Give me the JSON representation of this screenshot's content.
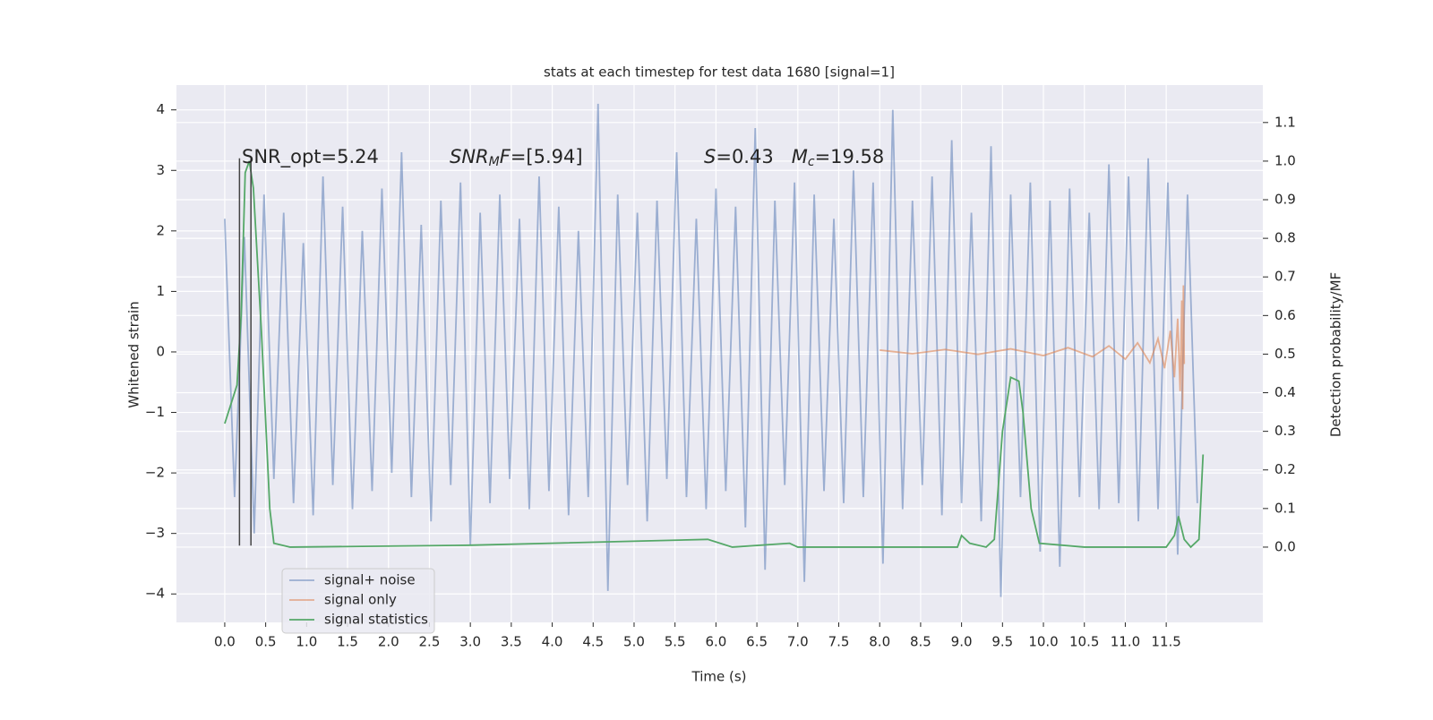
{
  "chart_data": {
    "type": "line",
    "title": "stats at each timestep for test data 1680 [signal=1]",
    "xlabel": "Time (s)",
    "ylabel": "Whitened strain",
    "y2label": "Detection probability/MF",
    "xlim": [
      -0.59,
      12.68
    ],
    "ylim": [
      -4.47,
      4.41
    ],
    "y2lim": [
      -0.195,
      1.197
    ],
    "xticks": [
      {
        "value": 0,
        "label": "0.0"
      },
      0.5,
      {
        "value": 1,
        "label": "1.0"
      },
      1.5,
      {
        "value": 2,
        "label": "2.0"
      },
      2.5,
      {
        "value": 3,
        "label": "3.0"
      },
      3.5,
      {
        "value": 4,
        "label": "4.0"
      },
      4.5,
      {
        "value": 5,
        "label": "5.0"
      },
      5.5,
      {
        "value": 6,
        "label": "6.0"
      },
      6.5,
      {
        "value": 7,
        "label": "7.0"
      },
      7.5,
      {
        "value": 8,
        "label": "8.0"
      },
      8.5,
      {
        "value": 9,
        "label": "9.0"
      },
      9.5,
      {
        "value": 10,
        "label": "10.0"
      },
      10.5,
      {
        "value": 11,
        "label": "11.0"
      },
      11.5
    ],
    "yticks": [
      {
        "value": -4,
        "label": "−4"
      },
      {
        "value": -3,
        "label": "−3"
      },
      {
        "value": -2,
        "label": "−2"
      },
      {
        "value": -1,
        "label": "−1"
      },
      0,
      1,
      2,
      3,
      4
    ],
    "y2ticks": [
      {
        "value": 0,
        "label": "0.0"
      },
      0.1,
      0.2,
      0.3,
      0.4,
      0.5,
      0.6,
      0.7,
      0.8,
      0.9,
      {
        "value": 1,
        "label": "1.0"
      },
      1.1
    ],
    "grid": true,
    "legend": "lower left",
    "series": [
      {
        "name": "signal+ noise",
        "color": "#4c72b0",
        "opacity": 0.5,
        "x": [
          0,
          0.12,
          0.24,
          0.36,
          0.48,
          0.6,
          0.72,
          0.84,
          0.96,
          1.08,
          1.2,
          1.32,
          1.44,
          1.56,
          1.68,
          1.8,
          1.92,
          2.04,
          2.16,
          2.28,
          2.4,
          2.52,
          2.64,
          2.76,
          2.88,
          3,
          3.12,
          3.24,
          3.36,
          3.48,
          3.6,
          3.72,
          3.84,
          3.96,
          4.08,
          4.2,
          4.32,
          4.44,
          4.56,
          4.68,
          4.8,
          4.92,
          5.04,
          5.16,
          5.28,
          5.4,
          5.52,
          5.64,
          5.76,
          5.88,
          6,
          6.12,
          6.24,
          6.36,
          6.48,
          6.6,
          6.72,
          6.84,
          6.96,
          7.08,
          7.2,
          7.32,
          7.44,
          7.56,
          7.68,
          7.8,
          7.92,
          8.04,
          8.16,
          8.28,
          8.4,
          8.52,
          8.64,
          8.76,
          8.88,
          9,
          9.12,
          9.24,
          9.36,
          9.48,
          9.6,
          9.72,
          9.84,
          9.96,
          10.08,
          10.2,
          10.32,
          10.44,
          10.56,
          10.68,
          10.8,
          10.92,
          11.04,
          11.16,
          11.28,
          11.4,
          11.52,
          11.64,
          11.76,
          11.88
        ],
        "values": [
          2.2,
          -2.4,
          1.9,
          -3.0,
          2.6,
          -2.1,
          2.3,
          -2.5,
          1.8,
          -2.7,
          2.9,
          -2.2,
          2.4,
          -2.6,
          2.0,
          -2.3,
          2.7,
          -2.0,
          3.3,
          -2.4,
          2.1,
          -2.8,
          2.5,
          -2.2,
          2.8,
          -3.2,
          2.3,
          -2.5,
          2.6,
          -2.1,
          2.2,
          -2.6,
          2.9,
          -2.3,
          2.4,
          -2.7,
          2.0,
          -2.4,
          4.1,
          -3.95,
          2.6,
          -2.2,
          2.3,
          -2.8,
          2.5,
          -2.1,
          3.3,
          -2.4,
          2.2,
          -2.6,
          2.7,
          -2.3,
          2.4,
          -2.9,
          3.7,
          -3.6,
          2.5,
          -2.2,
          2.8,
          -3.8,
          2.6,
          -2.3,
          2.2,
          -2.5,
          3.0,
          -2.4,
          2.8,
          -3.5,
          4.0,
          -2.6,
          2.5,
          -2.2,
          2.9,
          -2.7,
          3.5,
          -2.5,
          2.3,
          -2.8,
          3.4,
          -4.05,
          2.6,
          -2.4,
          2.8,
          -3.3,
          2.5,
          -3.55,
          2.7,
          -2.4,
          2.3,
          -2.6,
          3.1,
          -2.5,
          2.9,
          -2.8,
          3.2,
          -2.6,
          2.8,
          -3.35,
          2.6,
          -2.5
        ]
      },
      {
        "name": "signal only",
        "color": "#dd8452",
        "opacity": 0.6,
        "x": [
          8.0,
          8.4,
          8.8,
          9.2,
          9.6,
          10.0,
          10.3,
          10.6,
          10.8,
          11.0,
          11.15,
          11.3,
          11.4,
          11.48,
          11.55,
          11.6,
          11.64,
          11.67,
          11.69,
          11.7,
          11.71,
          11.72
        ],
        "values": [
          0.03,
          -0.03,
          0.04,
          -0.04,
          0.05,
          -0.06,
          0.07,
          -0.08,
          0.1,
          -0.12,
          0.15,
          -0.18,
          0.22,
          -0.27,
          0.35,
          -0.42,
          0.55,
          -0.65,
          0.85,
          -0.95,
          1.1,
          -0.2
        ]
      },
      {
        "name": "signal statistics",
        "color": "#55a868",
        "opacity": 1,
        "axis": "y2",
        "x": [
          0.0,
          0.15,
          0.2,
          0.25,
          0.3,
          0.35,
          0.45,
          0.55,
          0.6,
          0.8,
          3.0,
          5.9,
          6.2,
          6.9,
          7.0,
          8.95,
          9.0,
          9.1,
          9.3,
          9.4,
          9.5,
          9.6,
          9.7,
          9.75,
          9.85,
          9.95,
          10.5,
          11.5,
          11.6,
          11.65,
          11.72,
          11.8,
          11.9,
          11.95
        ],
        "values": [
          0.32,
          0.42,
          0.6,
          0.97,
          1.0,
          0.93,
          0.55,
          0.1,
          0.01,
          0.0,
          0.005,
          0.02,
          0.0,
          0.01,
          0.0,
          0.0,
          0.03,
          0.01,
          0.0,
          0.02,
          0.3,
          0.44,
          0.43,
          0.35,
          0.1,
          0.01,
          0.0,
          0.0,
          0.03,
          0.08,
          0.02,
          0.0,
          0.02,
          0.24
        ]
      }
    ],
    "vlines": [
      {
        "x": 0.18,
        "y": [
          -3.2,
          3.2
        ]
      },
      {
        "x": 0.32,
        "y": [
          -3.2,
          3.2
        ]
      }
    ],
    "annotations": [
      {
        "parts": [
          "SNR_opt=5.24"
        ]
      },
      {
        "parts": [
          "SNR",
          "M",
          "F",
          "=[5.94]"
        ]
      },
      {
        "parts": [
          "S",
          "=0.43   ",
          "M",
          "c",
          "=19.58"
        ]
      }
    ]
  }
}
